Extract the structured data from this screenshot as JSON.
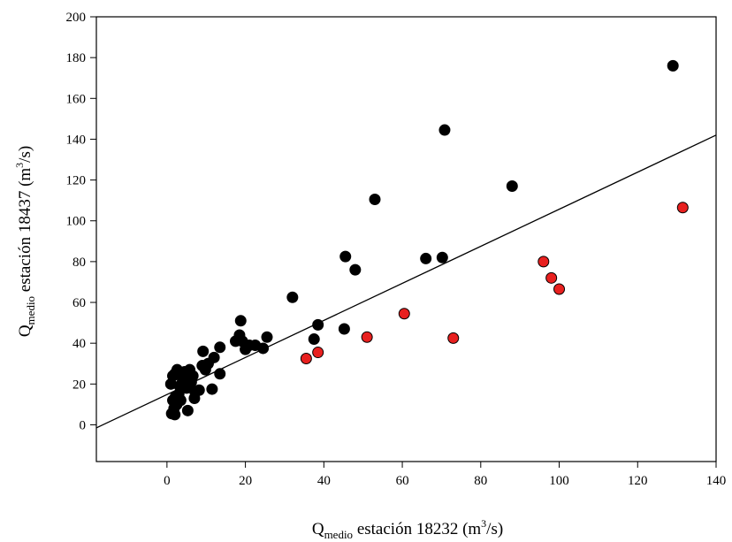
{
  "chart_data": {
    "type": "scatter",
    "title": "",
    "xlabel": {
      "main": "Q",
      "sub": "medio",
      "text": " estación 18232 (m",
      "sup": "3",
      "end": "/s)"
    },
    "ylabel": {
      "main": "Q",
      "sub": "medio",
      "text": " estación 18437 (m",
      "sup": "3",
      "end": "/s)"
    },
    "xlim": [
      -18,
      140
    ],
    "ylim": [
      -18,
      200
    ],
    "xticks": [
      "0",
      "20",
      "40",
      "60",
      "80",
      "100",
      "120",
      "140"
    ],
    "yticks": [
      "0",
      "20",
      "40",
      "60",
      "80",
      "100",
      "120",
      "140",
      "160",
      "180",
      "200"
    ],
    "grid": false,
    "series": [
      {
        "color": "#000000",
        "points": [
          [
            1.2,
            5.5
          ],
          [
            1.8,
            8
          ],
          [
            2,
            5
          ],
          [
            2.5,
            10
          ],
          [
            1.5,
            12
          ],
          [
            2.2,
            14
          ],
          [
            3,
            15
          ],
          [
            1,
            20
          ],
          [
            1.5,
            24
          ],
          [
            2,
            25
          ],
          [
            2.6,
            27
          ],
          [
            3.2,
            19
          ],
          [
            3.5,
            12
          ],
          [
            4,
            22
          ],
          [
            4.5,
            26
          ],
          [
            5,
            18
          ],
          [
            5.3,
            7
          ],
          [
            5.8,
            27
          ],
          [
            6.2,
            21
          ],
          [
            6.6,
            24
          ],
          [
            7,
            13
          ],
          [
            7.2,
            16
          ],
          [
            8.2,
            17
          ],
          [
            9,
            29
          ],
          [
            9.2,
            36
          ],
          [
            9.8,
            27
          ],
          [
            10.5,
            30
          ],
          [
            11.5,
            17.5
          ],
          [
            12,
            33
          ],
          [
            13.5,
            25
          ],
          [
            13.5,
            38
          ],
          [
            17.5,
            41
          ],
          [
            18.5,
            44
          ],
          [
            18.8,
            51
          ],
          [
            19.2,
            41
          ],
          [
            20,
            37
          ],
          [
            21,
            39
          ],
          [
            22.5,
            39
          ],
          [
            24.5,
            37.5
          ],
          [
            25.5,
            43
          ],
          [
            32,
            62.5
          ],
          [
            37.5,
            42
          ],
          [
            38.5,
            49
          ],
          [
            45.2,
            47
          ],
          [
            45.5,
            82.5
          ],
          [
            48,
            76
          ],
          [
            53,
            110.5
          ],
          [
            66,
            81.5
          ],
          [
            70.2,
            82
          ],
          [
            70.8,
            144.5
          ],
          [
            88,
            117
          ],
          [
            129,
            176
          ]
        ]
      },
      {
        "color": "#e8201f",
        "points": [
          [
            35.5,
            32.5
          ],
          [
            38.5,
            35.5
          ],
          [
            51,
            43
          ],
          [
            60.5,
            54.5
          ],
          [
            73,
            42.5
          ],
          [
            96,
            80
          ],
          [
            98,
            72
          ],
          [
            100,
            66.5
          ],
          [
            131.5,
            106.5
          ]
        ]
      }
    ],
    "trend_line": {
      "x": [
        -18,
        140
      ],
      "y": [
        -1.5,
        142
      ]
    }
  }
}
